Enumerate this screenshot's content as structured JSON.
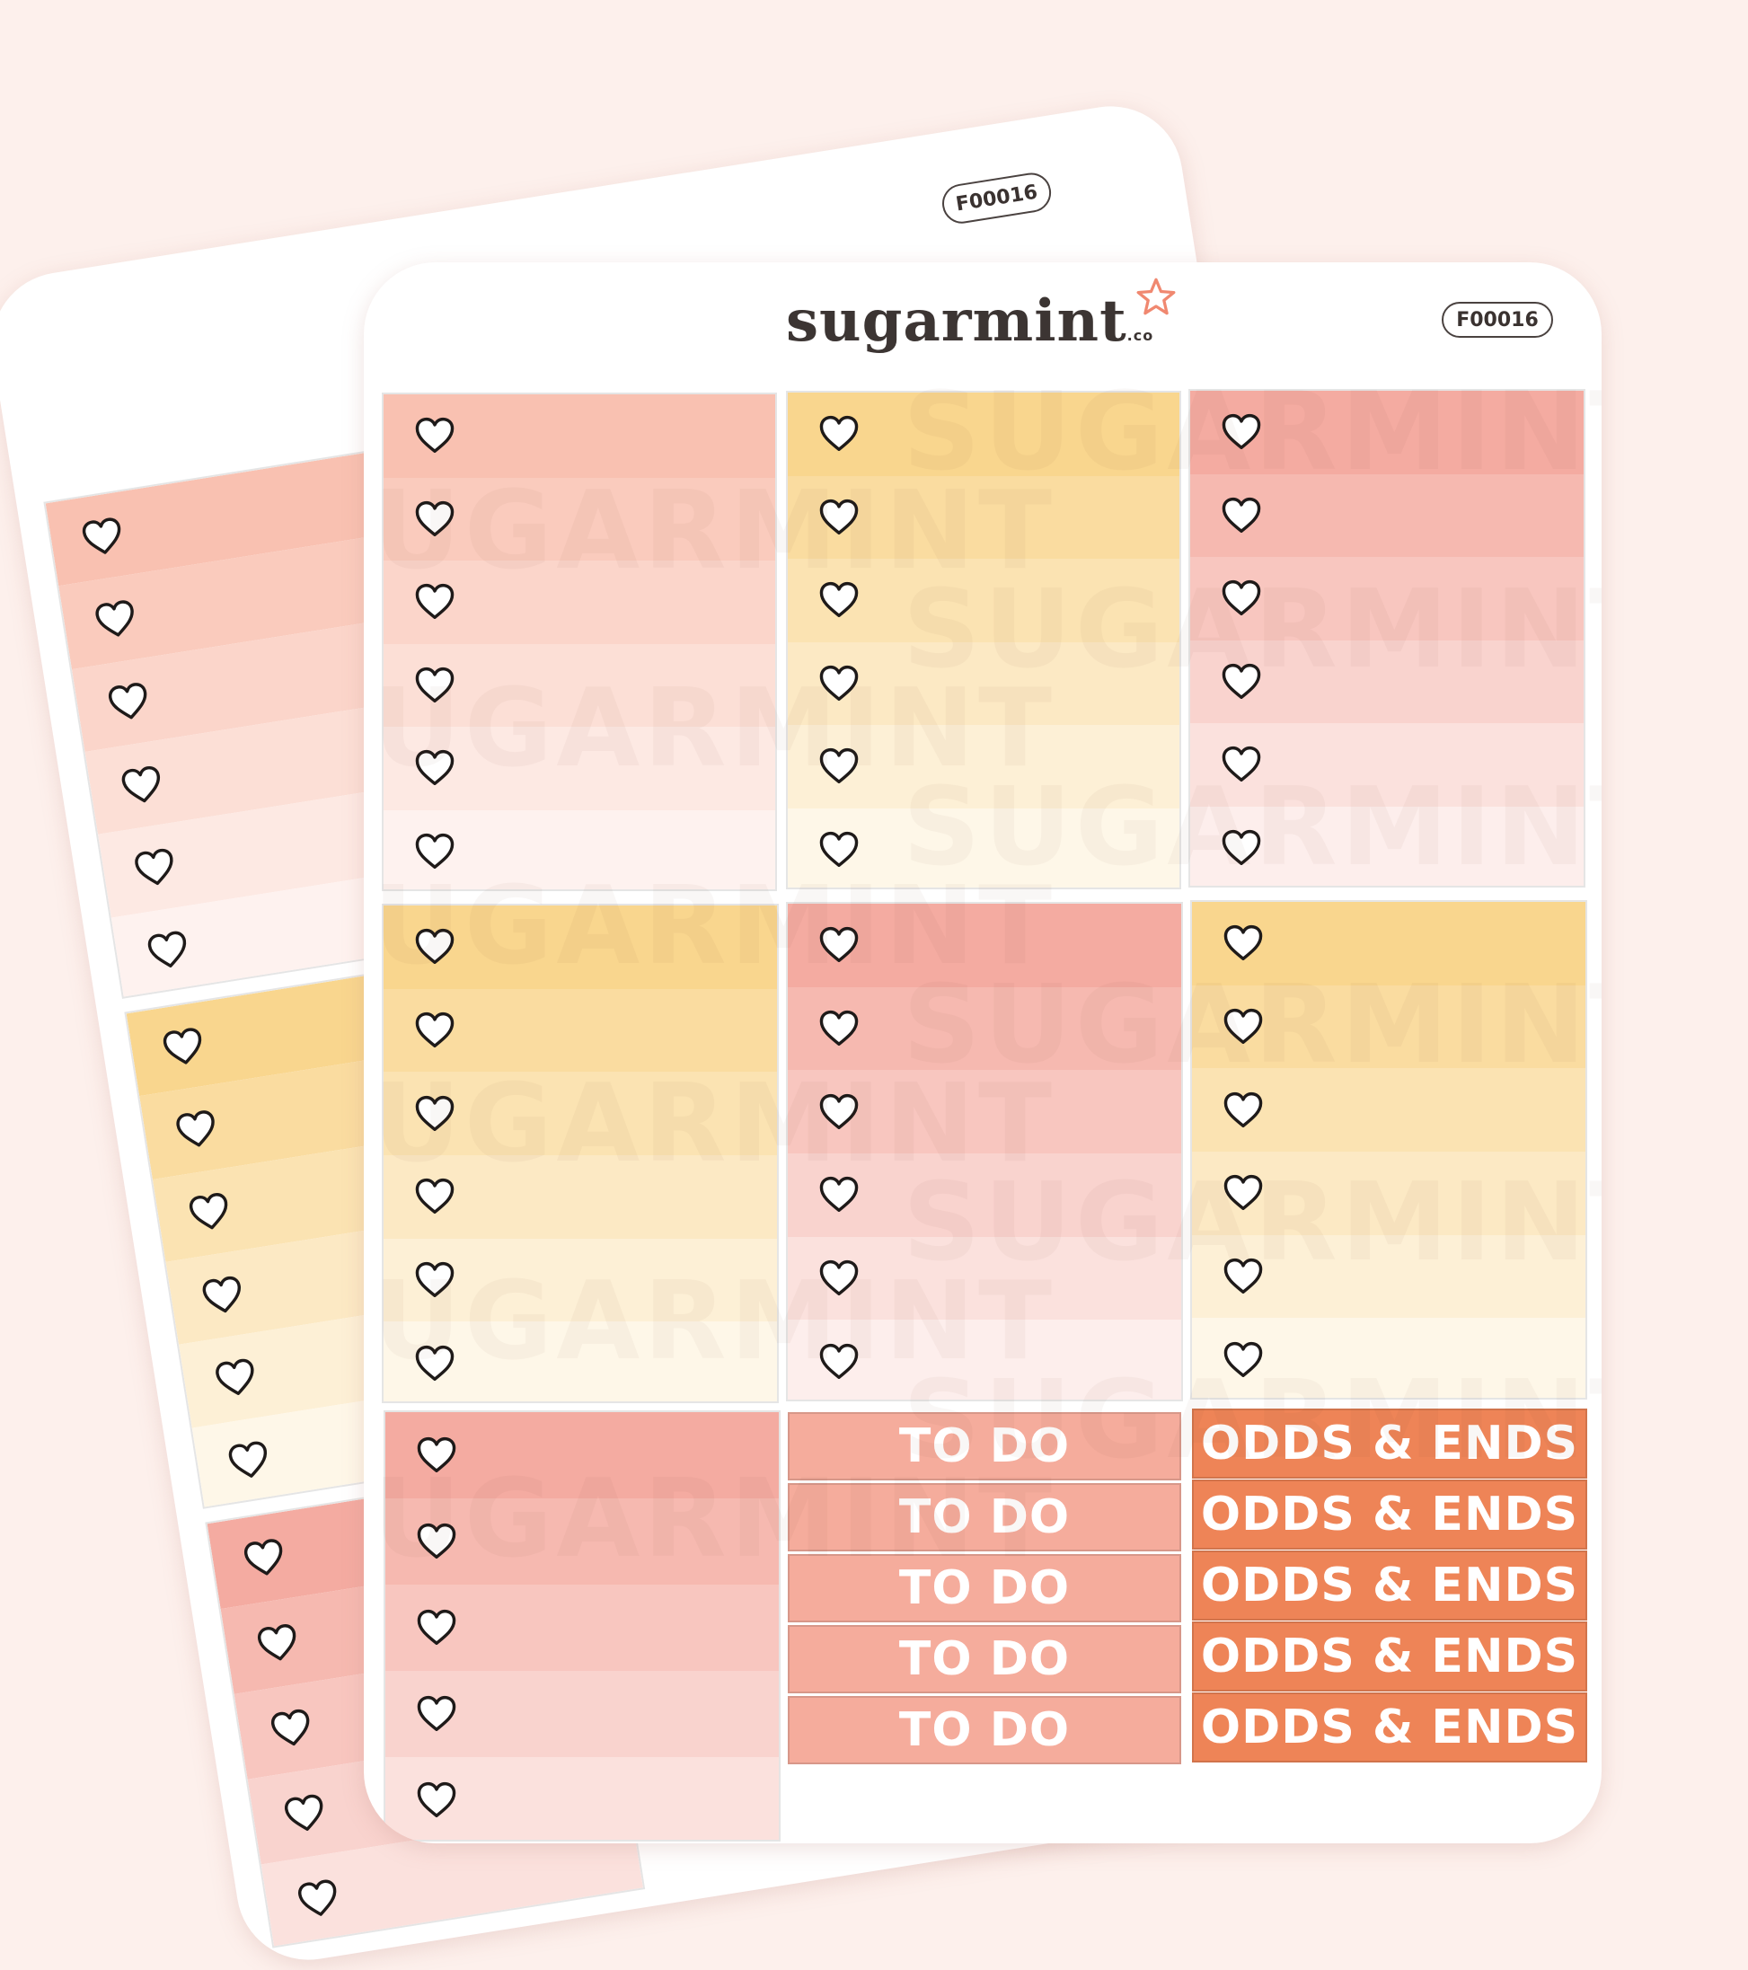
{
  "brand": {
    "name": "sugarmint",
    "suffix": ".co"
  },
  "sheet_code": "F00016",
  "watermark_text": "SUGARMINT",
  "labels": {
    "todo": [
      "TO DO",
      "TO DO",
      "TO DO",
      "TO DO",
      "TO DO"
    ],
    "odds": [
      "ODDS & ENDS",
      "ODDS & ENDS",
      "ODDS & ENDS",
      "ODDS & ENDS",
      "ODDS & ENDS"
    ]
  },
  "colors": {
    "background": "#fdf0ec",
    "peach": "#f8b9a6",
    "yellow": "#f8d07f",
    "coral": "#f3a094",
    "todo": "#f5ac9c",
    "odds": "#ee8457"
  },
  "icons": {
    "checkbox": "heart-outline-icon",
    "logo_mark": "star-icon"
  }
}
